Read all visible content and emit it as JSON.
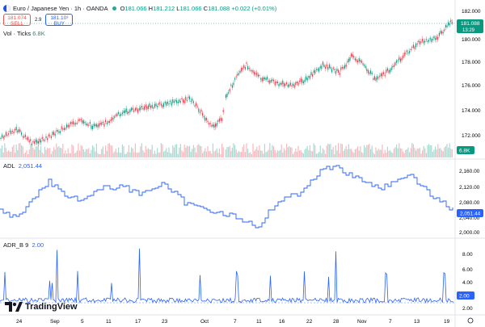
{
  "header": {
    "title": "Euro / Japanese Yen · 1h · OANDA",
    "o_label": "O",
    "o": "181.066",
    "h_label": "H",
    "h": "181.212",
    "l_label": "L",
    "l": "181.066",
    "c_label": "C",
    "c": "181.088",
    "change": "+0.022 (+0.01%)"
  },
  "trade": {
    "sell_price": "181.074",
    "sell_label": "SELL",
    "spread": "2.9",
    "buy_price": "181.10³",
    "buy_label": "BUY"
  },
  "volume": {
    "label": "Vol · Ticks",
    "value": "6.8K",
    "badge": "6.8K"
  },
  "price_axis": {
    "ticks": [
      "182.000",
      "180.000",
      "178.000",
      "176.000",
      "174.000",
      "172.000"
    ],
    "current": "181.088",
    "countdown": "13:29"
  },
  "adl": {
    "label": "ADL",
    "value": "2,051.44",
    "ticks": [
      "2,160.00",
      "2,120.00",
      "2,080.00",
      "2,040.00",
      "2,000.00"
    ],
    "badge": "2,051.44"
  },
  "adr": {
    "label": "ADR_B",
    "param": "9",
    "value": "2.00",
    "ticks": [
      "8.00",
      "6.00",
      "4.00",
      "2.00"
    ],
    "badge": "2.00"
  },
  "time_axis": [
    "24",
    "Sep",
    "5",
    "11",
    "17",
    "23",
    "Oct",
    "7",
    "11",
    "16",
    "22",
    "28",
    "Nov",
    "7",
    "13",
    "19"
  ],
  "brand": "TradingView",
  "colors": {
    "up": "#089981",
    "down": "#f23645",
    "line": "#2962ff"
  }
}
